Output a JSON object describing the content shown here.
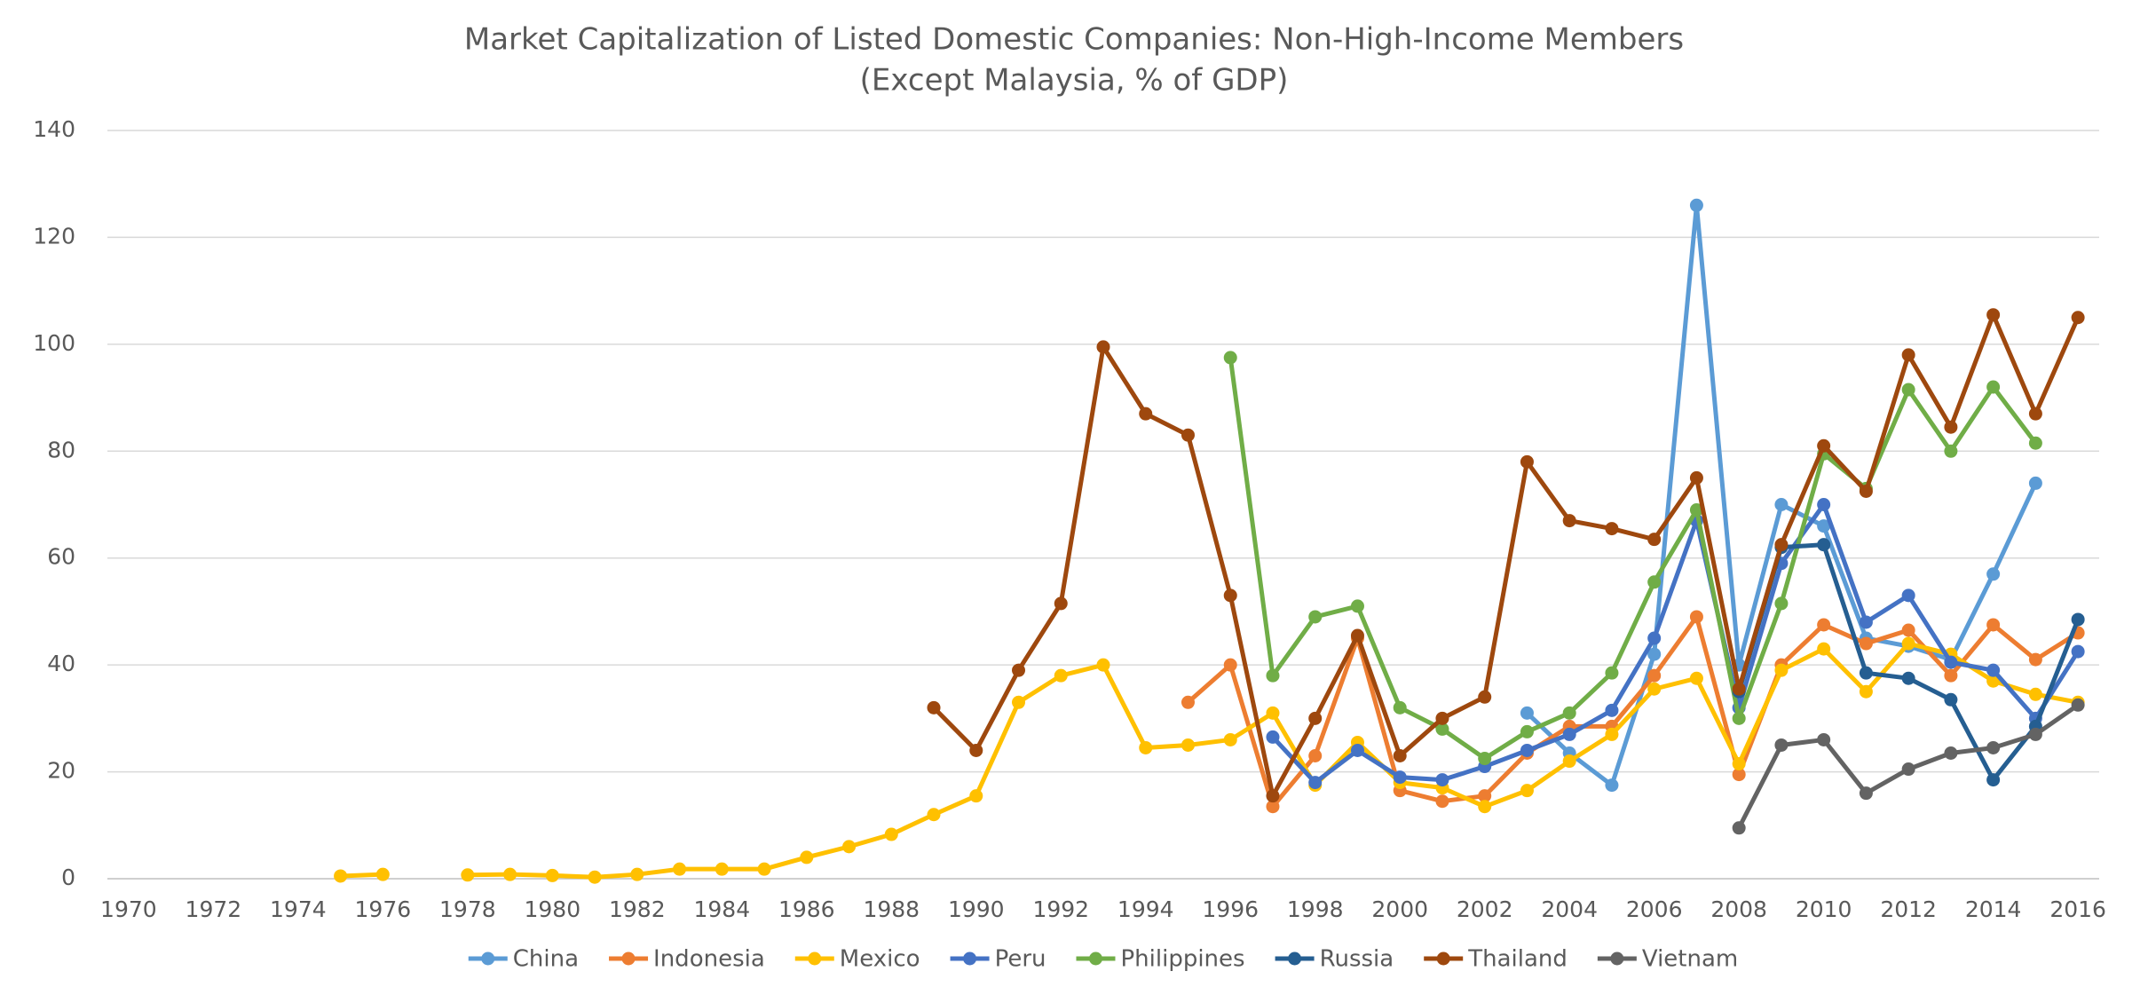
{
  "chart_data": {
    "type": "line",
    "title": "Market Capitalization of Listed Domestic Companies: Non-High-Income Members",
    "subtitle": "(Except Malaysia, % of GDP)",
    "x": [
      1970,
      1971,
      1972,
      1973,
      1974,
      1975,
      1976,
      1977,
      1978,
      1979,
      1980,
      1981,
      1982,
      1983,
      1984,
      1985,
      1986,
      1987,
      1988,
      1989,
      1990,
      1991,
      1992,
      1993,
      1994,
      1995,
      1996,
      1997,
      1998,
      1999,
      2000,
      2001,
      2002,
      2003,
      2004,
      2005,
      2006,
      2007,
      2008,
      2009,
      2010,
      2011,
      2012,
      2013,
      2014,
      2015,
      2016
    ],
    "xlim": [
      1969.5,
      2016.5
    ],
    "xticks": [
      1970,
      1972,
      1974,
      1976,
      1978,
      1980,
      1982,
      1984,
      1986,
      1988,
      1990,
      1992,
      1994,
      1996,
      1998,
      2000,
      2002,
      2004,
      2006,
      2008,
      2010,
      2012,
      2014,
      2016
    ],
    "ylim": [
      0,
      140
    ],
    "yticks": [
      0,
      20,
      40,
      60,
      80,
      100,
      120,
      140
    ],
    "grid": true,
    "legend": "bottom",
    "series": [
      {
        "name": "China",
        "color": "#5b9bd5",
        "values": [
          null,
          null,
          null,
          null,
          null,
          null,
          null,
          null,
          null,
          null,
          null,
          null,
          null,
          null,
          null,
          null,
          null,
          null,
          null,
          null,
          null,
          null,
          null,
          null,
          null,
          null,
          null,
          null,
          null,
          null,
          null,
          null,
          null,
          31,
          23.5,
          17.5,
          42,
          126,
          40,
          70,
          66,
          45,
          43.5,
          41,
          57,
          74,
          null
        ]
      },
      {
        "name": "Indonesia",
        "color": "#ed7d31",
        "values": [
          null,
          null,
          null,
          null,
          null,
          null,
          null,
          null,
          null,
          null,
          null,
          null,
          null,
          null,
          null,
          null,
          null,
          null,
          null,
          null,
          null,
          null,
          null,
          null,
          null,
          33,
          40,
          13.5,
          23,
          45,
          16.5,
          14.5,
          15.5,
          23.5,
          28.5,
          28.5,
          38,
          49,
          19.5,
          40,
          47.5,
          44,
          46.5,
          38,
          47.5,
          41,
          46
        ]
      },
      {
        "name": "Mexico",
        "color": "#ffc000",
        "values": [
          null,
          null,
          null,
          null,
          null,
          0.5,
          0.8,
          null,
          0.7,
          0.8,
          0.6,
          0.3,
          0.8,
          1.8,
          1.8,
          1.8,
          4,
          6,
          8.3,
          12,
          15.5,
          33,
          38,
          40,
          24.5,
          25,
          26,
          31,
          17.5,
          25.5,
          18,
          17,
          13.5,
          16.5,
          22,
          27,
          35.5,
          37.5,
          21.5,
          39,
          43,
          35,
          44,
          42,
          37,
          34.5,
          33
        ]
      },
      {
        "name": "Peru",
        "color": "#4472c4",
        "values": [
          null,
          null,
          null,
          null,
          null,
          null,
          null,
          null,
          null,
          null,
          null,
          null,
          null,
          null,
          null,
          null,
          null,
          null,
          null,
          null,
          null,
          null,
          null,
          null,
          null,
          null,
          null,
          26.5,
          18,
          24,
          19,
          18.5,
          21,
          24,
          27,
          31.5,
          45,
          67,
          32,
          59,
          70,
          48,
          53,
          40.5,
          39,
          30,
          42.5
        ]
      },
      {
        "name": "Philippines",
        "color": "#70ad47",
        "values": [
          null,
          null,
          null,
          null,
          null,
          null,
          null,
          null,
          null,
          null,
          null,
          null,
          null,
          null,
          null,
          null,
          null,
          null,
          null,
          null,
          null,
          null,
          null,
          null,
          null,
          null,
          97.5,
          38,
          49,
          51,
          32,
          28,
          22.5,
          27.5,
          31,
          38.5,
          55.5,
          69,
          30,
          51.5,
          79.5,
          73,
          91.5,
          80,
          92,
          81.5,
          null
        ]
      },
      {
        "name": "Russia",
        "color": "#255e91",
        "values": [
          null,
          null,
          null,
          null,
          null,
          null,
          null,
          null,
          null,
          null,
          null,
          null,
          null,
          null,
          null,
          null,
          null,
          null,
          null,
          null,
          null,
          null,
          null,
          null,
          null,
          null,
          null,
          null,
          null,
          null,
          null,
          null,
          null,
          null,
          null,
          null,
          null,
          null,
          35,
          62,
          62.5,
          38.5,
          37.5,
          33.5,
          18.5,
          28.5,
          48.5
        ]
      },
      {
        "name": "Thailand",
        "color": "#9e480e",
        "values": [
          null,
          null,
          null,
          null,
          null,
          null,
          null,
          null,
          null,
          null,
          null,
          null,
          null,
          null,
          null,
          null,
          null,
          null,
          null,
          32,
          24,
          39,
          51.5,
          99.5,
          87,
          83,
          53,
          15.5,
          30,
          45.5,
          23,
          30,
          34,
          78,
          67,
          65.5,
          63.5,
          75,
          35.5,
          62.5,
          81,
          72.5,
          98,
          84.5,
          105.5,
          87,
          105
        ]
      },
      {
        "name": "Vietnam",
        "color": "#636363",
        "values": [
          null,
          null,
          null,
          null,
          null,
          null,
          null,
          null,
          null,
          null,
          null,
          null,
          null,
          null,
          null,
          null,
          null,
          null,
          null,
          null,
          null,
          null,
          null,
          null,
          null,
          null,
          null,
          null,
          null,
          null,
          null,
          null,
          null,
          null,
          null,
          null,
          null,
          null,
          9.5,
          25,
          26,
          16,
          20.5,
          23.5,
          24.5,
          27,
          32.5
        ]
      }
    ]
  }
}
